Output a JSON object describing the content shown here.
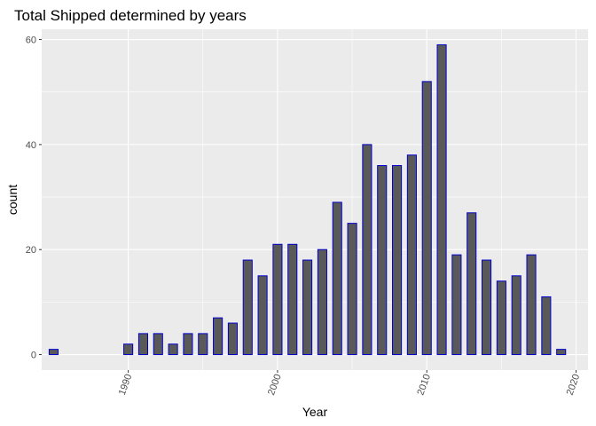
{
  "chart_data": {
    "type": "bar",
    "title": "Total Shipped determined by years",
    "xlabel": "Year",
    "ylabel": "count",
    "x": [
      1985,
      1990,
      1991,
      1992,
      1993,
      1994,
      1995,
      1996,
      1997,
      1998,
      1999,
      2000,
      2001,
      2002,
      2003,
      2004,
      2005,
      2006,
      2007,
      2008,
      2009,
      2010,
      2011,
      2012,
      2013,
      2014,
      2015,
      2016,
      2017,
      2018,
      2019
    ],
    "values": [
      1,
      2,
      4,
      4,
      2,
      4,
      4,
      7,
      6,
      18,
      15,
      21,
      21,
      18,
      20,
      29,
      25,
      40,
      36,
      36,
      38,
      52,
      59,
      19,
      27,
      18,
      14,
      15,
      19,
      11,
      1
    ],
    "xlim": [
      1984.2,
      2020.8
    ],
    "ylim": [
      -2.95,
      61.95
    ],
    "x_ticks": [
      "1990",
      "2000",
      "2010",
      "2020"
    ],
    "y_ticks": [
      "0",
      "20",
      "40",
      "60"
    ],
    "grid": true,
    "bar_fill": "#595959",
    "bar_outline": "#0000cd",
    "panel_background": "#ebebeb",
    "grid_color": "#ffffff"
  }
}
